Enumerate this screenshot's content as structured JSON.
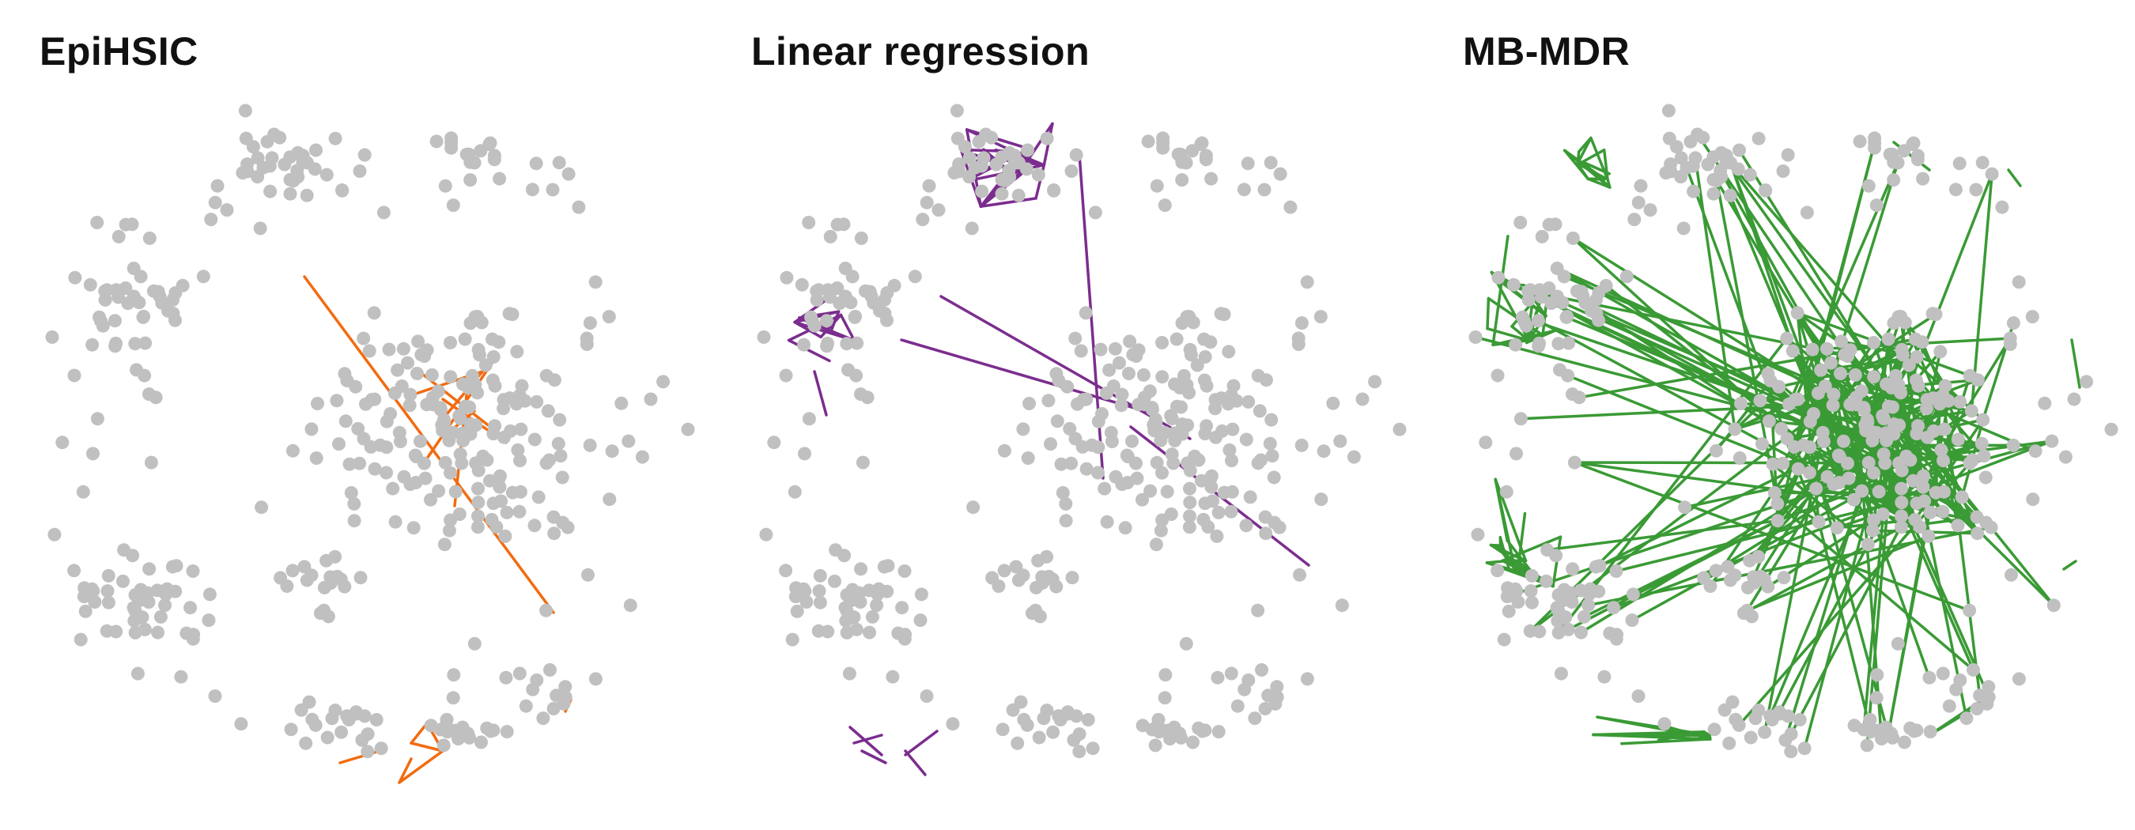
{
  "figure": {
    "node_color": "#c0c0c0",
    "panels": [
      {
        "id": "epihsic",
        "title": "EpiHSIC",
        "edge_color": "#f26b0f",
        "edges_description": "few edges: cross through center plus small cluster at bottom"
      },
      {
        "id": "linear-regression",
        "title": "Linear regression",
        "edge_color": "#7b2d8e",
        "edges_description": "dense cluster top-left, medium cluster left, long edges into center, small cluster bottom"
      },
      {
        "id": "mb-mdr",
        "title": "MB-MDR",
        "edge_color": "#3a9a35",
        "edges_description": "very dense hub in center with many radiating edges, plus dense peripheral clusters"
      }
    ]
  }
}
